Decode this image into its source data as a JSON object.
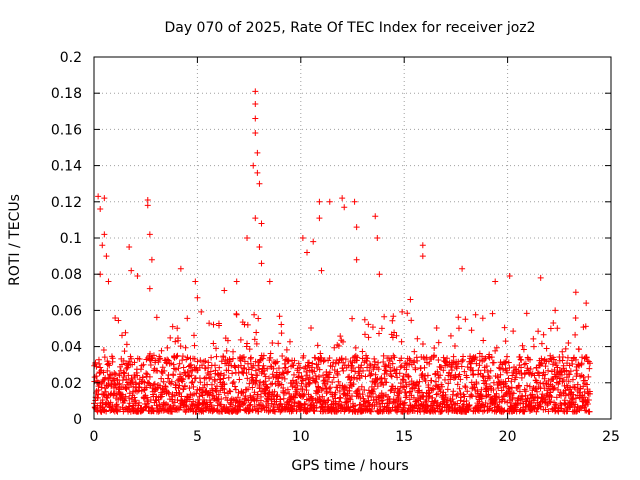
{
  "chart_data": {
    "type": "scatter",
    "title": "Day 070 of 2025, Rate Of TEC Index for receiver joz2",
    "xlabel": "GPS time / hours",
    "ylabel": "ROTI / TECUs",
    "xlim": [
      0,
      25
    ],
    "ylim": [
      0,
      0.2
    ],
    "xticks": [
      0,
      5,
      10,
      15,
      20,
      25
    ],
    "xtick_labels": [
      "0",
      "5",
      "10",
      "15",
      "20",
      "25"
    ],
    "yticks": [
      0,
      0.02,
      0.04,
      0.06,
      0.08,
      0.1,
      0.12,
      0.14,
      0.16,
      0.18,
      0.2
    ],
    "ytick_labels": [
      "0",
      "0.02",
      "0.04",
      "0.06",
      "0.08",
      "0.1",
      "0.12",
      "0.14",
      "0.16",
      "0.18",
      "0.2"
    ],
    "grid": true,
    "marker": "+",
    "color": "#ff0000",
    "x_data_range": [
      0,
      24
    ],
    "series": [
      {
        "name": "ROTI",
        "description_points": [
          {
            "x": 0.2,
            "y": 0.123
          },
          {
            "x": 0.3,
            "y": 0.116
          },
          {
            "x": 0.4,
            "y": 0.096
          },
          {
            "x": 0.5,
            "y": 0.122
          },
          {
            "x": 0.5,
            "y": 0.102
          },
          {
            "x": 0.6,
            "y": 0.09
          },
          {
            "x": 0.7,
            "y": 0.076
          },
          {
            "x": 0.3,
            "y": 0.08
          },
          {
            "x": 1.7,
            "y": 0.095
          },
          {
            "x": 1.8,
            "y": 0.082
          },
          {
            "x": 2.1,
            "y": 0.079
          },
          {
            "x": 2.6,
            "y": 0.121
          },
          {
            "x": 2.6,
            "y": 0.118
          },
          {
            "x": 2.7,
            "y": 0.102
          },
          {
            "x": 2.8,
            "y": 0.088
          },
          {
            "x": 2.7,
            "y": 0.072
          },
          {
            "x": 4.2,
            "y": 0.083
          },
          {
            "x": 4.9,
            "y": 0.076
          },
          {
            "x": 5.0,
            "y": 0.067
          },
          {
            "x": 6.3,
            "y": 0.071
          },
          {
            "x": 6.9,
            "y": 0.076
          },
          {
            "x": 7.4,
            "y": 0.1
          },
          {
            "x": 7.7,
            "y": 0.14
          },
          {
            "x": 7.8,
            "y": 0.181
          },
          {
            "x": 7.8,
            "y": 0.174
          },
          {
            "x": 7.8,
            "y": 0.166
          },
          {
            "x": 7.8,
            "y": 0.158
          },
          {
            "x": 7.9,
            "y": 0.147
          },
          {
            "x": 7.9,
            "y": 0.136
          },
          {
            "x": 8.0,
            "y": 0.13
          },
          {
            "x": 7.8,
            "y": 0.111
          },
          {
            "x": 8.1,
            "y": 0.108
          },
          {
            "x": 8.0,
            "y": 0.095
          },
          {
            "x": 8.1,
            "y": 0.086
          },
          {
            "x": 8.5,
            "y": 0.076
          },
          {
            "x": 10.1,
            "y": 0.1
          },
          {
            "x": 10.3,
            "y": 0.092
          },
          {
            "x": 10.6,
            "y": 0.098
          },
          {
            "x": 10.9,
            "y": 0.12
          },
          {
            "x": 10.9,
            "y": 0.111
          },
          {
            "x": 11.4,
            "y": 0.12
          },
          {
            "x": 11.0,
            "y": 0.082
          },
          {
            "x": 12.0,
            "y": 0.122
          },
          {
            "x": 12.1,
            "y": 0.117
          },
          {
            "x": 12.6,
            "y": 0.12
          },
          {
            "x": 12.7,
            "y": 0.106
          },
          {
            "x": 12.7,
            "y": 0.088
          },
          {
            "x": 13.6,
            "y": 0.112
          },
          {
            "x": 13.7,
            "y": 0.1
          },
          {
            "x": 13.8,
            "y": 0.08
          },
          {
            "x": 15.3,
            "y": 0.066
          },
          {
            "x": 15.9,
            "y": 0.096
          },
          {
            "x": 15.9,
            "y": 0.09
          },
          {
            "x": 17.8,
            "y": 0.083
          },
          {
            "x": 19.4,
            "y": 0.076
          },
          {
            "x": 20.1,
            "y": 0.079
          },
          {
            "x": 21.6,
            "y": 0.078
          },
          {
            "x": 22.3,
            "y": 0.06
          },
          {
            "x": 23.3,
            "y": 0.07
          },
          {
            "x": 23.8,
            "y": 0.064
          }
        ],
        "baseline_band": {
          "y_min": 0.004,
          "y_typical_max": 0.035,
          "y_dense_max": 0.06
        }
      }
    ]
  }
}
